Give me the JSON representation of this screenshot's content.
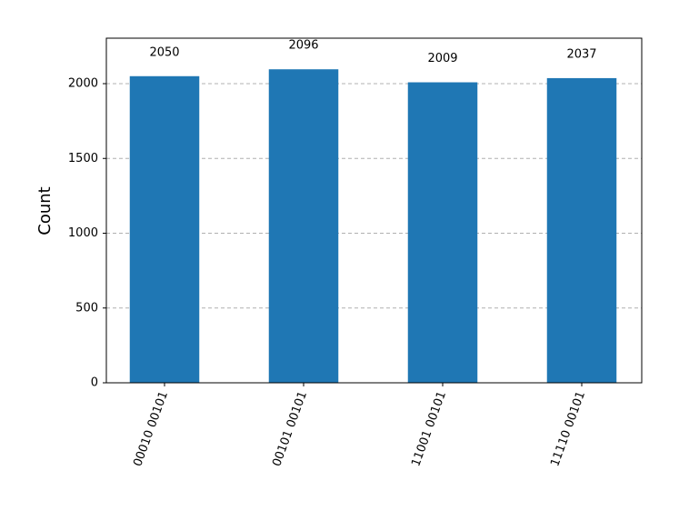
{
  "chart_data": {
    "type": "bar",
    "ylabel": "Count",
    "categories": [
      "00010 00101",
      "00101 00101",
      "11001 00101",
      "11110 00101"
    ],
    "values": [
      2050,
      2096,
      2009,
      2037
    ],
    "color": "#1f77b4",
    "ylim": [
      0,
      2304
    ],
    "yticks": [
      0,
      500,
      1000,
      1500,
      2000
    ],
    "grid": true
  }
}
